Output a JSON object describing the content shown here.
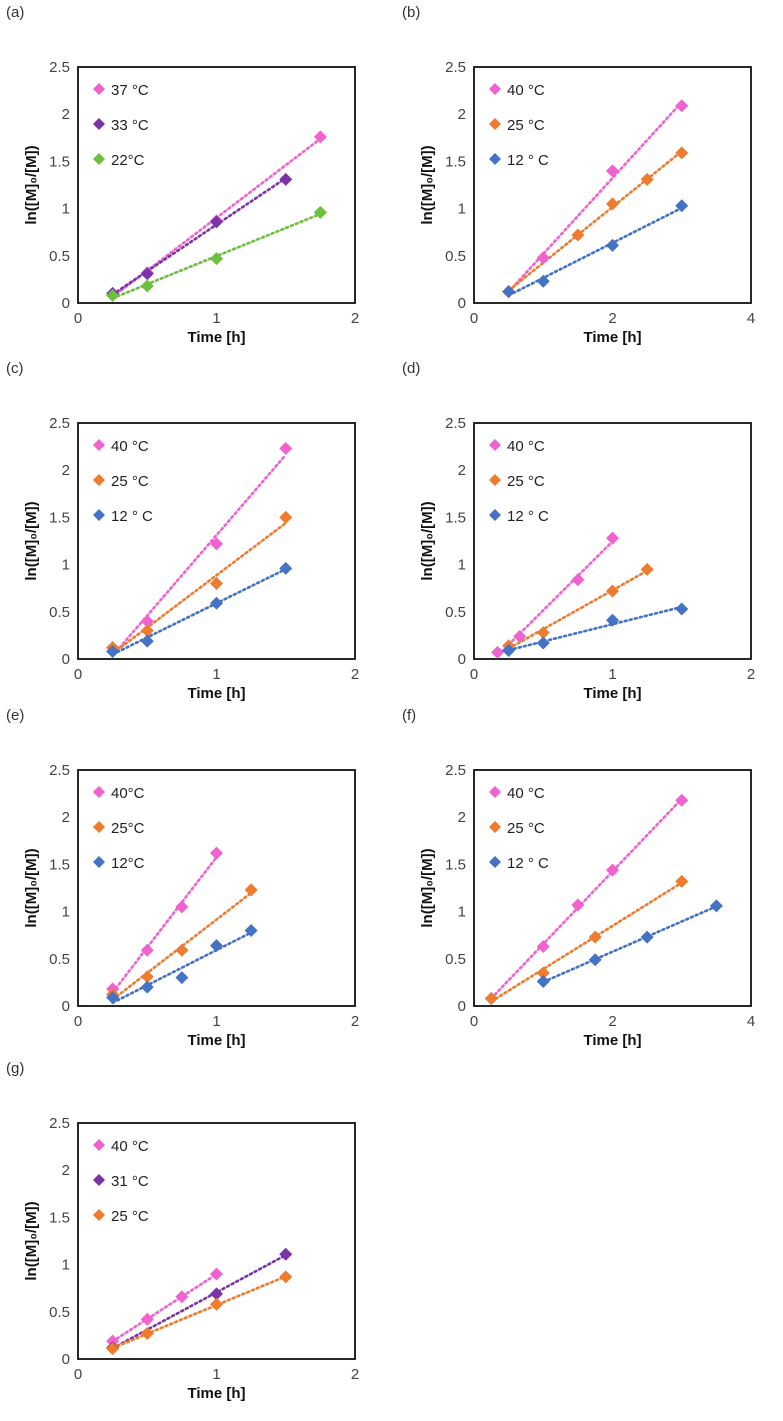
{
  "chart_data": [
    {
      "type": "scatter",
      "label": "(a)",
      "title": "",
      "xlabel": "Time [h]",
      "ylabel": "ln([M]₀/[M])",
      "xlim": [
        0,
        2
      ],
      "ylim": [
        0,
        2.5
      ],
      "xticks": [
        "0",
        "1",
        "2"
      ],
      "yticks": [
        "0",
        "0.5",
        "1",
        "1.5",
        "2",
        "2.5"
      ],
      "trendlines": true,
      "series": [
        {
          "name": "37 °C",
          "color": "#f062cf",
          "x": [
            0.25,
            0.5,
            1.0,
            1.75
          ],
          "y": [
            0.1,
            0.32,
            0.87,
            1.76
          ]
        },
        {
          "name": "33 °C",
          "color": "#7b34a8",
          "x": [
            0.25,
            0.5,
            1.0,
            1.5
          ],
          "y": [
            0.1,
            0.31,
            0.86,
            1.31
          ]
        },
        {
          "name": "22°C",
          "color": "#6cbf3f",
          "x": [
            0.25,
            0.5,
            1.0,
            1.75
          ],
          "y": [
            0.08,
            0.18,
            0.47,
            0.96
          ]
        }
      ]
    },
    {
      "type": "scatter",
      "label": "(b)",
      "title": "",
      "xlabel": "Time [h]",
      "ylabel": "ln([M]₀/[M])",
      "xlim": [
        0,
        4
      ],
      "ylim": [
        0,
        2.5
      ],
      "xticks": [
        "0",
        "2",
        "4"
      ],
      "yticks": [
        "0",
        "0.5",
        "1",
        "1.5",
        "2",
        "2.5"
      ],
      "trendlines": true,
      "series": [
        {
          "name": "40 °C",
          "color": "#f062cf",
          "x": [
            0.5,
            1.0,
            2.0,
            3.0
          ],
          "y": [
            0.12,
            0.48,
            1.4,
            2.09
          ]
        },
        {
          "name": "25 °C",
          "color": "#ee7b2e",
          "x": [
            0.5,
            1.5,
            2.0,
            2.5,
            3.0
          ],
          "y": [
            0.12,
            0.72,
            1.05,
            1.31,
            1.59
          ]
        },
        {
          "name": "12 ° C",
          "color": "#4472c4",
          "x": [
            0.5,
            1.0,
            2.0,
            3.0
          ],
          "y": [
            0.12,
            0.23,
            0.61,
            1.03
          ]
        }
      ]
    },
    {
      "type": "scatter",
      "label": "(c)",
      "title": "",
      "xlabel": "Time [h]",
      "ylabel": "ln([M]₀/[M])",
      "xlim": [
        0,
        2
      ],
      "ylim": [
        0,
        2.5
      ],
      "xticks": [
        "0",
        "1",
        "2"
      ],
      "yticks": [
        "0",
        "0.5",
        "1",
        "1.5",
        "2",
        "2.5"
      ],
      "trendlines": true,
      "series": [
        {
          "name": "40 °C",
          "color": "#f062cf",
          "x": [
            0.25,
            0.5,
            1.0,
            1.5
          ],
          "y": [
            0.12,
            0.4,
            1.22,
            2.23
          ]
        },
        {
          "name": "25 °C",
          "color": "#ee7b2e",
          "x": [
            0.25,
            0.5,
            1.0,
            1.5
          ],
          "y": [
            0.12,
            0.3,
            0.8,
            1.5
          ]
        },
        {
          "name": "12 ° C",
          "color": "#4472c4",
          "x": [
            0.25,
            0.5,
            1.0,
            1.5
          ],
          "y": [
            0.08,
            0.19,
            0.59,
            0.96
          ]
        }
      ]
    },
    {
      "type": "scatter",
      "label": "(d)",
      "title": "",
      "xlabel": "Time [h]",
      "ylabel": "ln([M]₀/[M])",
      "xlim": [
        0,
        2
      ],
      "ylim": [
        0,
        2.5
      ],
      "xticks": [
        "0",
        "1",
        "2"
      ],
      "yticks": [
        "0",
        "0.5",
        "1",
        "1.5",
        "2",
        "2.5"
      ],
      "trendlines": true,
      "series": [
        {
          "name": "40 °C",
          "color": "#f062cf",
          "x": [
            0.17,
            0.33,
            0.75,
            1.0
          ],
          "y": [
            0.07,
            0.24,
            0.84,
            1.28
          ]
        },
        {
          "name": "25 °C",
          "color": "#ee7b2e",
          "x": [
            0.25,
            0.5,
            1.0,
            1.25
          ],
          "y": [
            0.14,
            0.28,
            0.72,
            0.95
          ]
        },
        {
          "name": "12 ° C",
          "color": "#4472c4",
          "x": [
            0.25,
            0.5,
            1.0,
            1.5
          ],
          "y": [
            0.09,
            0.17,
            0.41,
            0.53
          ]
        }
      ]
    },
    {
      "type": "scatter",
      "label": "(e)",
      "title": "",
      "xlabel": "Time [h]",
      "ylabel": "ln([M]₀/[M])",
      "xlim": [
        0,
        2
      ],
      "ylim": [
        0,
        2.5
      ],
      "xticks": [
        "0",
        "1",
        "2"
      ],
      "yticks": [
        "0",
        "0.5",
        "1",
        "1.5",
        "2",
        "2.5"
      ],
      "trendlines": true,
      "series": [
        {
          "name": "40°C",
          "color": "#f062cf",
          "x": [
            0.25,
            0.5,
            0.75,
            1.0
          ],
          "y": [
            0.18,
            0.59,
            1.05,
            1.62
          ]
        },
        {
          "name": "25°C",
          "color": "#ee7b2e",
          "x": [
            0.25,
            0.5,
            0.75,
            1.25
          ],
          "y": [
            0.12,
            0.31,
            0.59,
            1.23
          ]
        },
        {
          "name": "12°C",
          "color": "#4472c4",
          "x": [
            0.25,
            0.5,
            0.75,
            1.0,
            1.25
          ],
          "y": [
            0.09,
            0.2,
            0.3,
            0.64,
            0.8
          ]
        }
      ]
    },
    {
      "type": "scatter",
      "label": "(f)",
      "title": "",
      "xlabel": "Time [h]",
      "ylabel": "ln([M]₀/[M])",
      "xlim": [
        0,
        4
      ],
      "ylim": [
        0,
        2.5
      ],
      "xticks": [
        "0",
        "2",
        "4"
      ],
      "yticks": [
        "0",
        "0.5",
        "1",
        "1.5",
        "2",
        "2.5"
      ],
      "trendlines": true,
      "series": [
        {
          "name": "40 °C",
          "color": "#f062cf",
          "x": [
            0.25,
            1.0,
            1.5,
            2.0,
            3.0
          ],
          "y": [
            0.08,
            0.63,
            1.07,
            1.44,
            2.18
          ]
        },
        {
          "name": "25 °C",
          "color": "#ee7b2e",
          "x": [
            0.25,
            1.0,
            1.75,
            3.0
          ],
          "y": [
            0.08,
            0.35,
            0.73,
            1.32
          ]
        },
        {
          "name": "12 ° C",
          "color": "#4472c4",
          "x": [
            1.0,
            1.75,
            2.5,
            3.5
          ],
          "y": [
            0.26,
            0.49,
            0.73,
            1.06
          ]
        }
      ]
    },
    {
      "type": "scatter",
      "label": "(g)",
      "title": "",
      "xlabel": "Time [h]",
      "ylabel": "ln([M]₀/[M])",
      "xlim": [
        0,
        2
      ],
      "ylim": [
        0,
        2.5
      ],
      "xticks": [
        "0",
        "1",
        "2"
      ],
      "yticks": [
        "0",
        "0.5",
        "1",
        "1.5",
        "2",
        "2.5"
      ],
      "trendlines": true,
      "series": [
        {
          "name": "40 °C",
          "color": "#f062cf",
          "x": [
            0.25,
            0.5,
            0.75,
            1.0
          ],
          "y": [
            0.19,
            0.42,
            0.66,
            0.9
          ]
        },
        {
          "name": "31 °C",
          "color": "#7b34a8",
          "x": [
            0.25,
            1.0,
            1.5
          ],
          "y": [
            0.12,
            0.69,
            1.11
          ]
        },
        {
          "name": "25 °C",
          "color": "#ee7b2e",
          "x": [
            0.25,
            0.5,
            1.0,
            1.5
          ],
          "y": [
            0.11,
            0.27,
            0.58,
            0.87
          ]
        }
      ]
    }
  ]
}
